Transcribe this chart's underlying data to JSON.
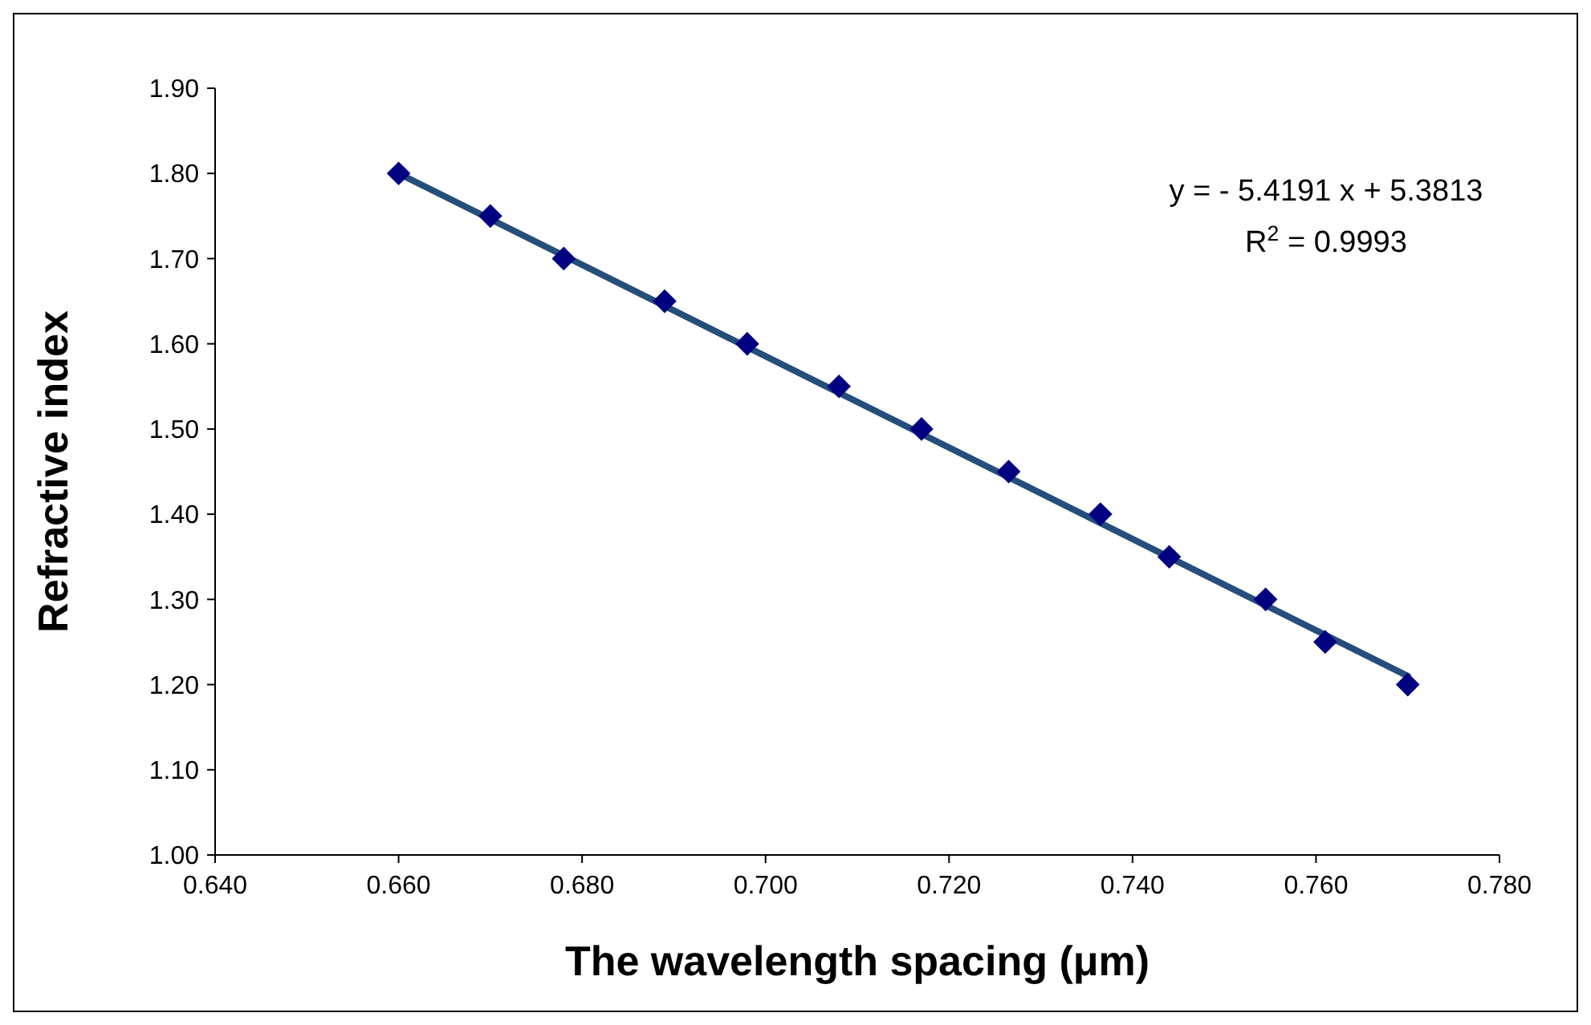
{
  "chart_data": {
    "type": "scatter",
    "xlabel": "The wavelength spacing  (μm)",
    "ylabel": "Refractive index",
    "xlim": [
      0.64,
      0.78
    ],
    "xticks": [
      {
        "value": 0.64,
        "label": "0.640"
      },
      {
        "value": 0.66,
        "label": "0.660"
      },
      {
        "value": 0.68,
        "label": "0.680"
      },
      {
        "value": 0.7,
        "label": "0.700"
      },
      {
        "value": 0.72,
        "label": "0.720"
      },
      {
        "value": 0.74,
        "label": "0.740"
      },
      {
        "value": 0.76,
        "label": "0.760"
      },
      {
        "value": 0.78,
        "label": "0.780"
      }
    ],
    "ylim": [
      1.0,
      1.9
    ],
    "yticks": [
      {
        "value": 1.0,
        "label": "1.00"
      },
      {
        "value": 1.1,
        "label": "1.10"
      },
      {
        "value": 1.2,
        "label": "1.20"
      },
      {
        "value": 1.3,
        "label": "1.30"
      },
      {
        "value": 1.4,
        "label": "1.40"
      },
      {
        "value": 1.5,
        "label": "1.50"
      },
      {
        "value": 1.6,
        "label": "1.60"
      },
      {
        "value": 1.7,
        "label": "1.70"
      },
      {
        "value": 1.8,
        "label": "1.80"
      },
      {
        "value": 1.9,
        "label": "1.90"
      }
    ],
    "grid": false,
    "series": [
      {
        "type": "line",
        "color": "#254e7b",
        "x": [
          0.66,
          0.77
        ],
        "values": [
          1.8,
          1.21
        ],
        "marker": "none"
      },
      {
        "color": "#000080",
        "marker": "diamond",
        "x": [
          0.66,
          0.67,
          0.678,
          0.689,
          0.698,
          0.708,
          0.717,
          0.7265,
          0.7365,
          0.744,
          0.7545,
          0.761,
          0.77
        ],
        "values": [
          1.8,
          1.75,
          1.7,
          1.65,
          1.6,
          1.55,
          1.5,
          1.45,
          1.4,
          1.35,
          1.3,
          1.25,
          1.2
        ]
      }
    ],
    "annotations": [
      "y = - 5.4191 x + 5.3813",
      "R$^{2}$ = 0.9993"
    ]
  }
}
